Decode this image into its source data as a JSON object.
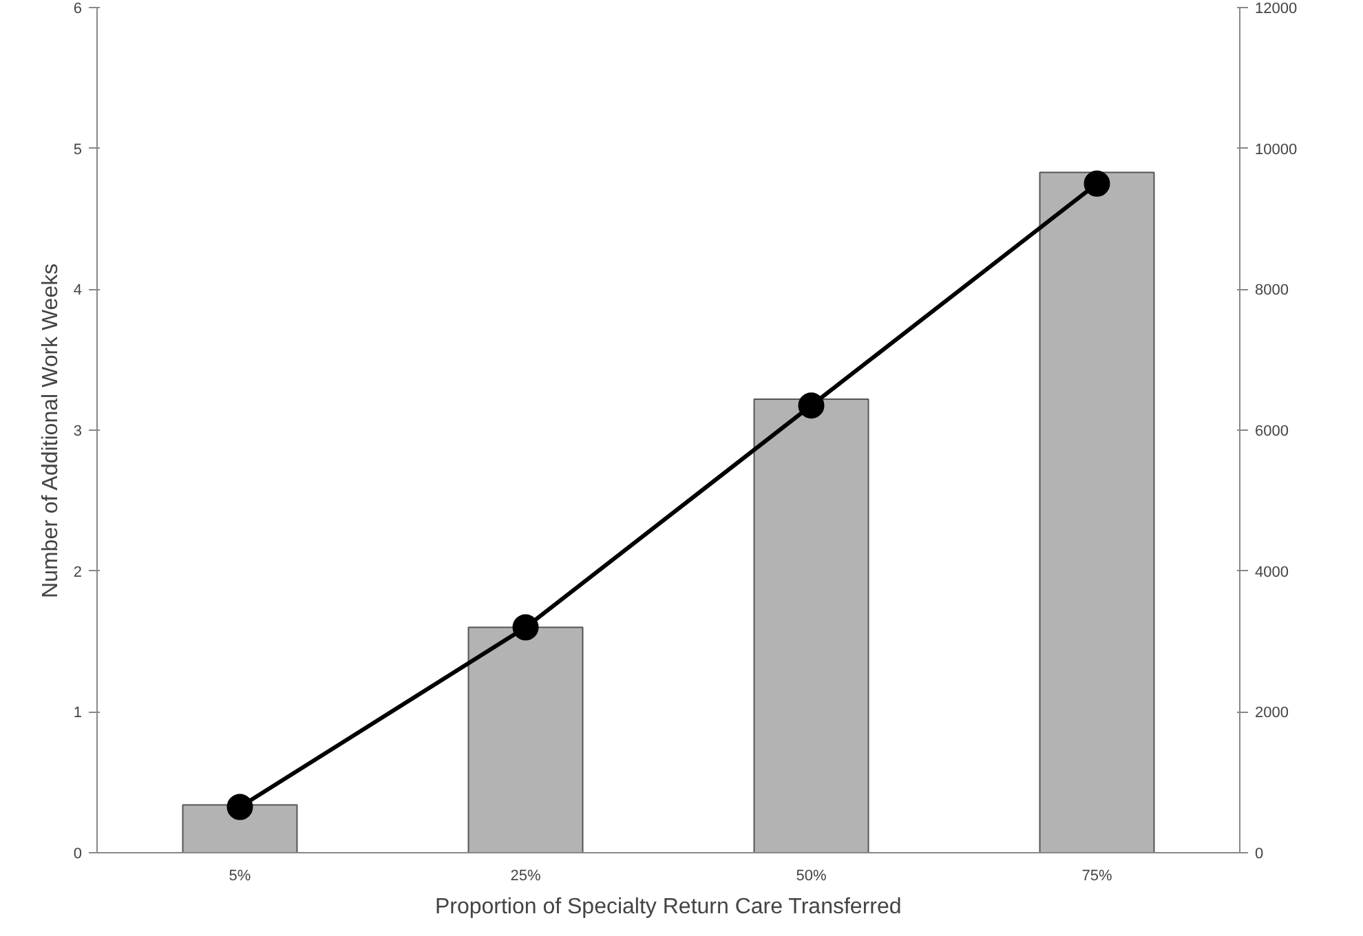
{
  "chart_data": {
    "type": "bar",
    "xlabel": "Proportion of Specialty Return Care Transferred",
    "ylabel": "Number of Additional Work Weeks",
    "categories": [
      "5%",
      "25%",
      "50%",
      "75%"
    ],
    "series": [
      {
        "color": "#b3b3b3",
        "values": [
          0.34,
          1.6,
          3.22,
          4.83
        ]
      },
      {
        "type": "line",
        "axis": "y2",
        "color": "#000000",
        "values": [
          650,
          3200,
          6350,
          9500
        ]
      }
    ],
    "ylim": [
      0,
      6
    ],
    "yticks": [
      0,
      1,
      2,
      3,
      4,
      5,
      6
    ],
    "y2lim": [
      0,
      12000
    ],
    "y2ticks": [
      0,
      2000,
      4000,
      6000,
      8000,
      10000,
      12000
    ],
    "marker": "circle",
    "line_style": "solid"
  }
}
